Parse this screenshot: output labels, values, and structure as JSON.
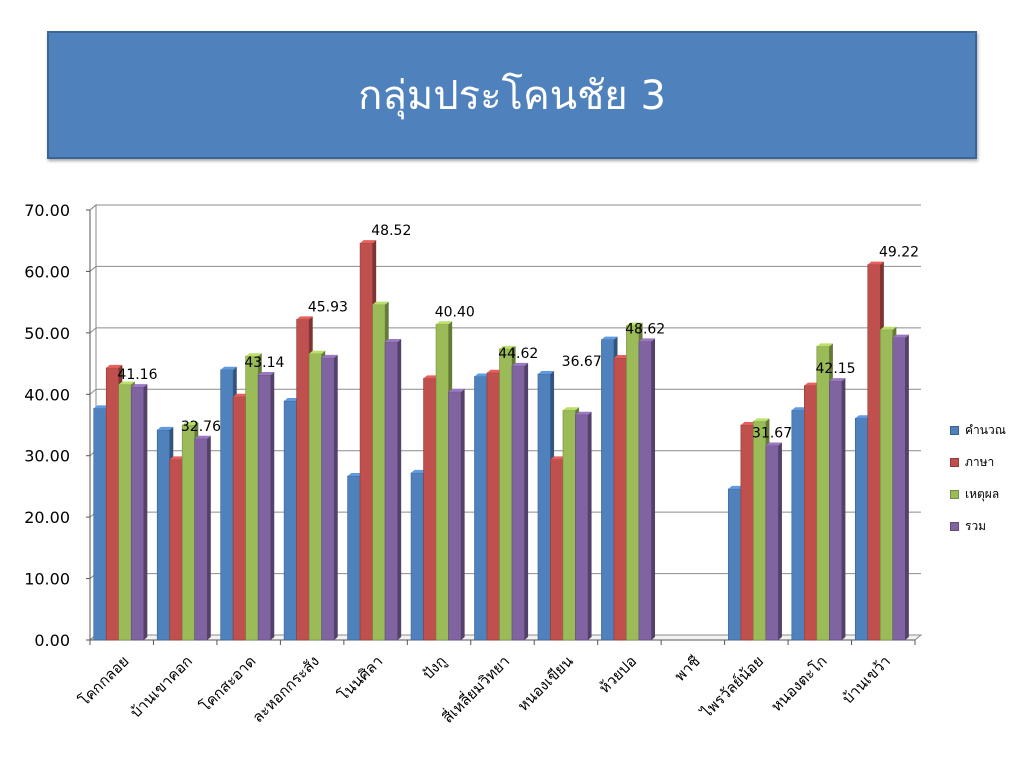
{
  "title": "กลุ่มประโคนชัย 3",
  "chart_data": {
    "type": "bar",
    "title": "กลุ่มประโคนชัย 3",
    "categories": [
      "โคกกลอย",
      "บ้านเขาคอก",
      "โคกสะอาด",
      "ละหอกกระสัง",
      "โนนศิลา",
      "ปังกู",
      "สี่เหลี่ยมวิทยา",
      "หนองเขียน",
      "ห้วยปอ",
      "พาชี",
      "ไพรวัลย์น้อย",
      "หนองตะโก",
      "บ้านเขว้า"
    ],
    "series": [
      {
        "name": "คำนวณ",
        "color": "#4f81bd",
        "values": [
          37.7,
          34.2,
          44.0,
          38.9,
          26.7,
          27.2,
          42.9,
          43.3,
          48.9,
          null,
          24.6,
          37.4,
          36.1
        ]
      },
      {
        "name": "ภาษา",
        "color": "#c0504d",
        "values": [
          44.3,
          29.4,
          39.6,
          52.2,
          64.6,
          42.6,
          43.5,
          29.4,
          45.9,
          null,
          35.0,
          41.4,
          61.1
        ]
      },
      {
        "name": "เหตุผล",
        "color": "#9bbb59",
        "values": [
          41.6,
          35.0,
          46.2,
          46.6,
          54.6,
          51.4,
          47.4,
          37.4,
          51.2,
          null,
          35.6,
          47.8,
          50.5
        ]
      },
      {
        "name": "รวม",
        "color": "#8064a2",
        "values": [
          41.16,
          32.76,
          43.14,
          45.93,
          48.52,
          40.4,
          44.62,
          36.67,
          48.62,
          null,
          31.67,
          42.15,
          49.22
        ]
      }
    ],
    "data_labels": [
      "41.16",
      "32.76",
      "43.14",
      "45.93",
      "48.52",
      "40.40",
      "44.62",
      "36.67",
      "48.62",
      null,
      "31.67",
      "42.15",
      "49.22"
    ],
    "y_ticks": [
      "0.00",
      "10.00",
      "20.00",
      "30.00",
      "40.00",
      "50.00",
      "60.00",
      "70.00"
    ],
    "ylim": [
      0,
      70
    ],
    "grid": true,
    "legend_position": "right",
    "xlabel": "",
    "ylabel": ""
  }
}
